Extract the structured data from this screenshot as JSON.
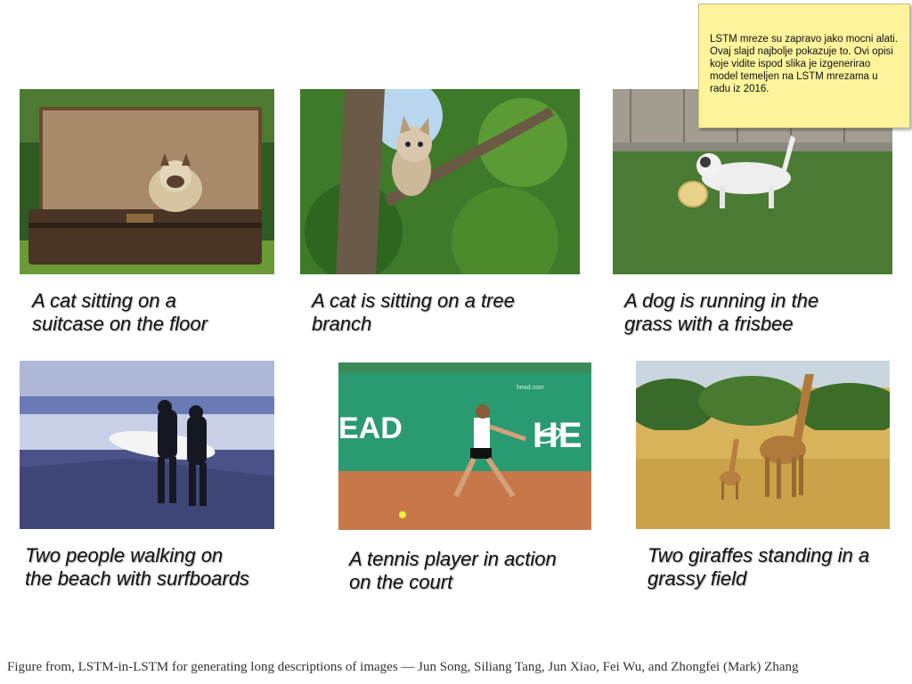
{
  "note": {
    "text": "LSTM mreze su zapravo jako mocni alati. Ovaj slajd najbolje pokazuje to. Ovi opisi koje vidite ispod slika je izgenerirao model temeljen na LSTM mrezama u radu iz 2016."
  },
  "images": [
    {
      "caption_line1": "A cat sitting on a",
      "caption_line2": "suitcase on the floor"
    },
    {
      "caption_line1": "A cat is sitting on a tree",
      "caption_line2": "branch"
    },
    {
      "caption_line1": "A dog is running in the",
      "caption_line2": "grass with a frisbee"
    },
    {
      "caption_line1": "Two people walking on",
      "caption_line2": "the beach with surfboards"
    },
    {
      "caption_line1": "A tennis player in action",
      "caption_line2": "on the court",
      "banner_left": "EAD",
      "banner_right": "HE",
      "banner_small": "head.com"
    },
    {
      "caption_line1": "Two giraffes standing in a",
      "caption_line2": "grassy field"
    }
  ],
  "footer": {
    "text": "Figure from, LSTM-in-LSTM for generating long descriptions of images — Jun Song, Siliang Tang, Jun Xiao, Fei Wu, and Zhongfei (Mark) Zhang"
  }
}
